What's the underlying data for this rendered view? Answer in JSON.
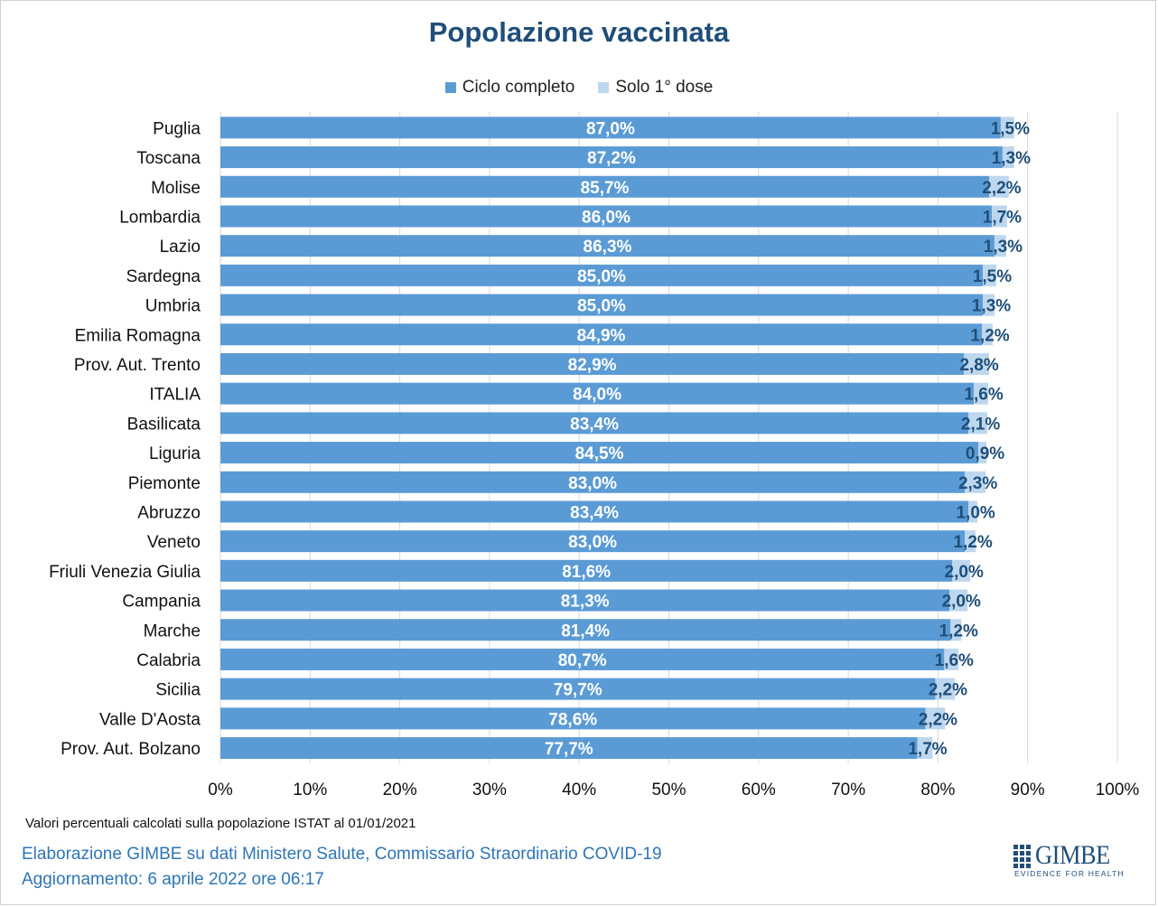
{
  "title": "Popolazione vaccinata",
  "legend": {
    "series1": "Ciclo completo",
    "series2": "Solo 1° dose"
  },
  "colors": {
    "series1": "#5b9bd5",
    "series2": "#bdd7ee",
    "title": "#1f4e79",
    "footer": "#2e75b6",
    "grid": "#d9d9d9"
  },
  "footer": {
    "note": "Valori percentuali calcolati sulla popolazione ISTAT al 01/01/2021",
    "source": "Elaborazione GIMBE su dati Ministero Salute, Commissario Straordinario COVID-19",
    "updated": "Aggiornamento: 6 aprile 2022 ore 06:17"
  },
  "logo": {
    "word": "GIMBE",
    "tagline": "EVIDENCE FOR HEALTH"
  },
  "chart_data": {
    "type": "bar",
    "orientation": "horizontal",
    "stacked": true,
    "title": "Popolazione vaccinata",
    "xlim": [
      0,
      100
    ],
    "x_ticks": [
      "0%",
      "10%",
      "20%",
      "30%",
      "40%",
      "50%",
      "60%",
      "70%",
      "80%",
      "90%",
      "100%"
    ],
    "grid": true,
    "legend_position": "top",
    "categories": [
      "Puglia",
      "Toscana",
      "Molise",
      "Lombardia",
      "Lazio",
      "Sardegna",
      "Umbria",
      "Emilia Romagna",
      "Prov. Aut. Trento",
      "ITALIA",
      "Basilicata",
      "Liguria",
      "Piemonte",
      "Abruzzo",
      "Veneto",
      "Friuli Venezia Giulia",
      "Campania",
      "Marche",
      "Calabria",
      "Sicilia",
      "Valle D'Aosta",
      "Prov. Aut. Bolzano"
    ],
    "series": [
      {
        "name": "Ciclo completo",
        "values": [
          87.0,
          87.2,
          85.7,
          86.0,
          86.3,
          85.0,
          85.0,
          84.9,
          82.9,
          84.0,
          83.4,
          84.5,
          83.0,
          83.4,
          83.0,
          81.6,
          81.3,
          81.4,
          80.7,
          79.7,
          78.6,
          77.7
        ],
        "labels": [
          "87,0%",
          "87,2%",
          "85,7%",
          "86,0%",
          "86,3%",
          "85,0%",
          "85,0%",
          "84,9%",
          "82,9%",
          "84,0%",
          "83,4%",
          "84,5%",
          "83,0%",
          "83,4%",
          "83,0%",
          "81,6%",
          "81,3%",
          "81,4%",
          "80,7%",
          "79,7%",
          "78,6%",
          "77,7%"
        ]
      },
      {
        "name": "Solo 1° dose",
        "values": [
          1.5,
          1.3,
          2.2,
          1.7,
          1.3,
          1.5,
          1.3,
          1.2,
          2.8,
          1.6,
          2.1,
          0.9,
          2.3,
          1.0,
          1.2,
          2.0,
          2.0,
          1.2,
          1.6,
          2.2,
          2.2,
          1.7
        ],
        "labels": [
          "1,5%",
          "1,3%",
          "2,2%",
          "1,7%",
          "1,3%",
          "1,5%",
          "1,3%",
          "1,2%",
          "2,8%",
          "1,6%",
          "2,1%",
          "0,9%",
          "2,3%",
          "1,0%",
          "1,2%",
          "2,0%",
          "2,0%",
          "1,2%",
          "1,6%",
          "2,2%",
          "2,2%",
          "1,7%"
        ]
      }
    ]
  }
}
